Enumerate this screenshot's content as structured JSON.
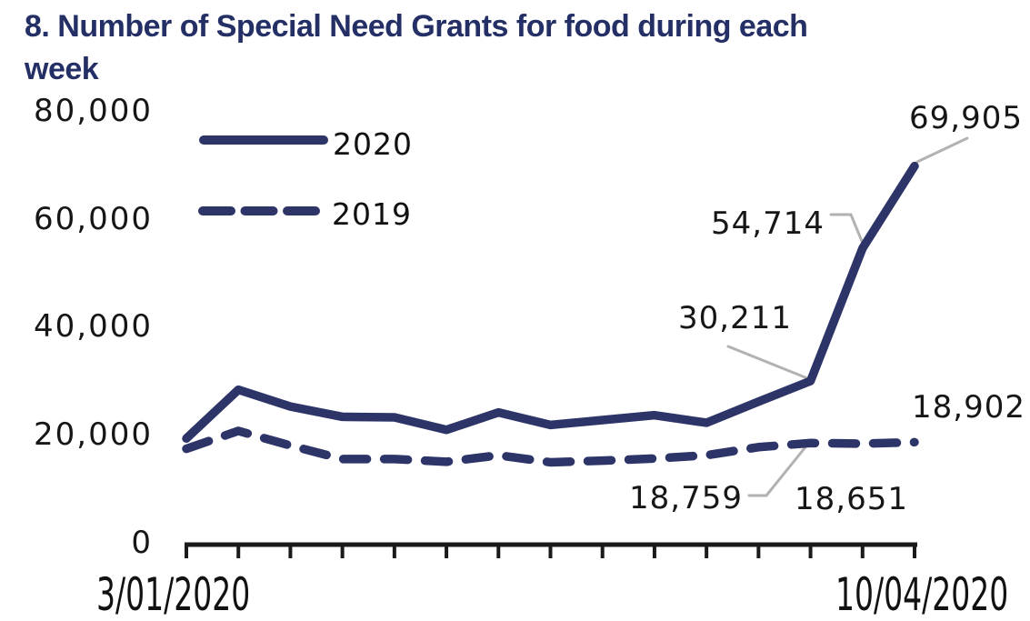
{
  "title": {
    "line1": "8. Number of Special Need Grants for food during each",
    "line2": "week"
  },
  "colors": {
    "series_navy": "#2d3468",
    "title_navy": "#242f66",
    "text_black": "#161616",
    "axis_black": "#1a1a1a",
    "leader_gray": "#b2b2b2",
    "background": "#ffffff"
  },
  "legend": {
    "items": [
      {
        "label": "2020",
        "style": "solid"
      },
      {
        "label": "2019",
        "style": "dashed"
      }
    ]
  },
  "y_axis": {
    "tick_labels": [
      "80,000",
      "60,000",
      "40,000",
      "20,000",
      "0"
    ]
  },
  "x_axis": {
    "first_tick_label": "3/01/2020",
    "last_tick_label": "10/04/2020",
    "tick_count": 15
  },
  "annotations": [
    {
      "text": "69,905",
      "value": 69905,
      "series": "2020",
      "week_index": 15
    },
    {
      "text": "54,714",
      "value": 54714,
      "series": "2020",
      "week_index": 14
    },
    {
      "text": "30,211",
      "value": 30211,
      "series": "2020",
      "week_index": 13
    },
    {
      "text": "18,902",
      "value": 18902,
      "series": "2019",
      "week_index": 15
    },
    {
      "text": "18,651",
      "value": 18651,
      "series": "2019",
      "week_index": 14
    },
    {
      "text": "18,759",
      "value": 18759,
      "series": "2019",
      "week_index": 13
    }
  ],
  "chart_data": {
    "type": "line",
    "title": "8. Number of Special Need Grants for food during each week",
    "x": [
      1,
      2,
      3,
      4,
      5,
      6,
      7,
      8,
      9,
      10,
      11,
      12,
      13,
      14,
      15
    ],
    "x_axis_note": "15 weekly points; only first and last ticks labelled",
    "x_first_label": "3/01/2020",
    "x_last_label": "10/04/2020",
    "series": [
      {
        "name": "2020",
        "line_style": "solid",
        "values": [
          19600,
          28600,
          25500,
          23600,
          23500,
          21200,
          24400,
          22100,
          23000,
          23900,
          22500,
          26400,
          30211,
          54714,
          69905
        ]
      },
      {
        "name": "2019",
        "line_style": "dashed",
        "values": [
          17700,
          21000,
          18300,
          15800,
          15800,
          15300,
          16500,
          15200,
          15500,
          15900,
          16500,
          18000,
          18759,
          18651,
          18902
        ]
      }
    ],
    "labeled_points": {
      "2020": {
        "13": 30211,
        "14": 54714,
        "15": 69905
      },
      "2019": {
        "13": 18759,
        "14": 18651,
        "15": 18902
      }
    },
    "ylim": [
      0,
      80000
    ],
    "y_ticks": [
      0,
      20000,
      40000,
      60000,
      80000
    ],
    "grid": false,
    "legend_position": "top-left"
  }
}
